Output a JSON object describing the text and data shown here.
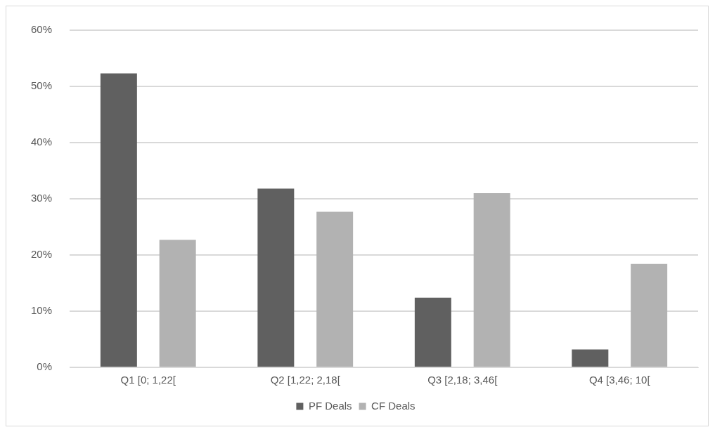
{
  "chart_data": {
    "type": "bar",
    "categories": [
      "Q1 [0; 1,22[",
      "Q2 [1,22; 2,18[",
      "Q3 [2,18; 3,46[",
      "Q4 [3,46; 10["
    ],
    "series": [
      {
        "name": "PF Deals",
        "color": "#606060",
        "values": [
          52.3,
          31.8,
          12.4,
          3.2
        ]
      },
      {
        "name": "CF Deals",
        "color": "#b2b2b2",
        "values": [
          22.7,
          27.7,
          31.0,
          18.4
        ]
      }
    ],
    "ylim": [
      0,
      60
    ],
    "yticks": [
      {
        "value": 0,
        "label": "0%"
      },
      {
        "value": 10,
        "label": "10%"
      },
      {
        "value": 20,
        "label": "20%"
      },
      {
        "value": 30,
        "label": "30%"
      },
      {
        "value": 40,
        "label": "40%"
      },
      {
        "value": 50,
        "label": "50%"
      },
      {
        "value": 60,
        "label": "60%"
      }
    ],
    "grid": "y",
    "legend": "bottom"
  }
}
